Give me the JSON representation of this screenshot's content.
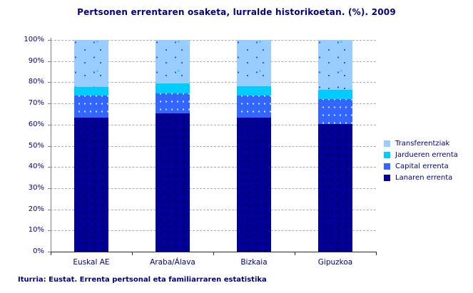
{
  "title": "Pertsonen errentaren osaketa, lurralde historikoetan. (%).  2009",
  "source": "Iturria: Eustat. Errenta pertsonal eta familiarraren estatistika",
  "colors": {
    "title_text": "#000080",
    "axis_text": "#000080",
    "gridline": "#A9A9A9",
    "y_axis": "#808080",
    "x_axis": "#2B2B2B",
    "lanaren": "#000099",
    "capital": "#3366FF",
    "jardueren": "#00CCFF",
    "transferentziak": "#99CCFF"
  },
  "chart_data": {
    "type": "bar",
    "stacked": true,
    "title": "Pertsonen errentaren osaketa, lurralde historikoetan. (%).  2009",
    "categories": [
      "Euskal AE",
      "Araba/Álava",
      "Bizkaia",
      "Gipuzkoa"
    ],
    "series": [
      {
        "name": "Lanaren errenta",
        "color": "#000099",
        "texture": "speckle",
        "values": [
          63.2,
          65.4,
          63.4,
          60.3
        ]
      },
      {
        "name": "Capital errenta",
        "color": "#3366FF",
        "texture": "dotrows",
        "values": [
          10.4,
          9.2,
          10.2,
          11.8
        ]
      },
      {
        "name": "Jardueren errenta",
        "color": "#00CCFF",
        "texture": "solid",
        "values": [
          4.1,
          4.7,
          4.4,
          4.4
        ]
      },
      {
        "name": "Transferentziak",
        "color": "#99CCFF",
        "texture": "sparse",
        "values": [
          22.3,
          20.7,
          22.0,
          23.5
        ]
      }
    ],
    "legend": [
      "Transferentziak",
      "Jardueren errenta",
      "Capital errenta",
      "Lanaren errenta"
    ],
    "legend_position": "right-middle",
    "xlabel": "",
    "ylabel": "",
    "ylim": [
      0,
      100
    ],
    "ytick_step": 10,
    "ytick_suffix": "%",
    "grid": true,
    "units": "%"
  }
}
